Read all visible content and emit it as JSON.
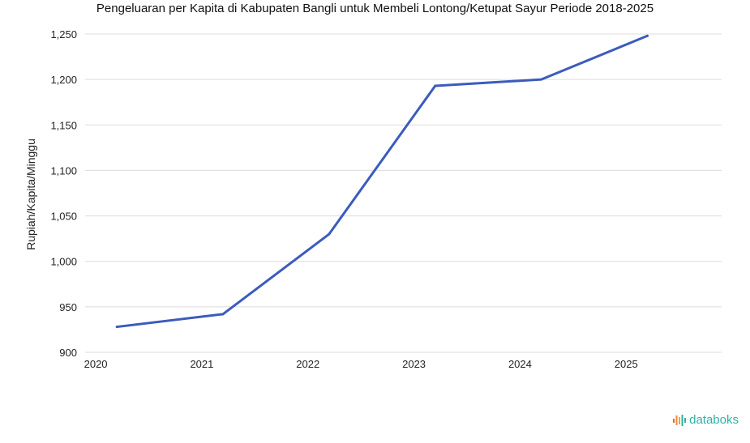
{
  "chart_data": {
    "type": "line",
    "title": "Pengeluaran per Kapita di Kabupaten Bangli untuk Membeli Lontong/Ketupat Sayur Periode 2018-2025",
    "xlabel": "",
    "ylabel": "Rupiah/Kapita/Minggu",
    "x_tick_labels": [
      "2020",
      "2021",
      "2022",
      "2023",
      "2024",
      "2025"
    ],
    "y_tick_labels": [
      "900",
      "950",
      "1,000",
      "1,050",
      "1,100",
      "1,150",
      "1,200",
      "1,250"
    ],
    "y_ticks": [
      900,
      950,
      1000,
      1050,
      1100,
      1150,
      1200,
      1250
    ],
    "ylim": [
      900,
      1250
    ],
    "grid": true,
    "legend": "none",
    "series": [
      {
        "color": "#3b5bbd",
        "points": [
          {
            "x": 2020.2,
            "y": 928
          },
          {
            "x": 2021.2,
            "y": 942
          },
          {
            "x": 2022.2,
            "y": 1030
          },
          {
            "x": 2023.2,
            "y": 1193
          },
          {
            "x": 2024.2,
            "y": 1200
          },
          {
            "x": 2025.2,
            "y": 1248
          }
        ]
      }
    ],
    "xlim": [
      2019.9,
      2025.9
    ]
  },
  "brand": {
    "name": "databoks",
    "color": "#2bb3a3",
    "icon": "databoks-logo-icon"
  }
}
